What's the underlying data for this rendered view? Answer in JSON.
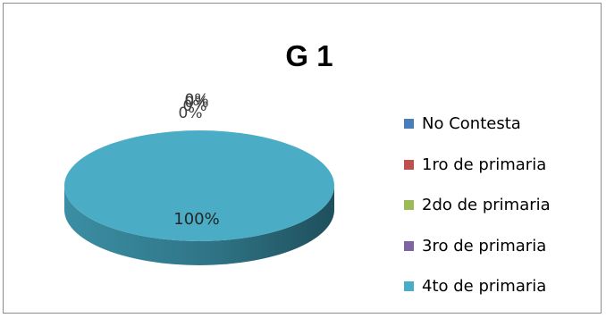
{
  "chart_data": {
    "type": "pie",
    "style": "3d",
    "title": "G 1",
    "legend_position": "right",
    "categories": [
      "No Contesta",
      "1ro de primaria",
      "2do de primaria",
      "3ro de primaria",
      "4to de primaria"
    ],
    "values": [
      0,
      0,
      0,
      0,
      100
    ],
    "data_labels": [
      "0%",
      "0%",
      "0%",
      "0%",
      "100%"
    ],
    "colors": [
      "#4a7ebb",
      "#c0504d",
      "#9bbb59",
      "#8064a2",
      "#4bacc6"
    ]
  }
}
